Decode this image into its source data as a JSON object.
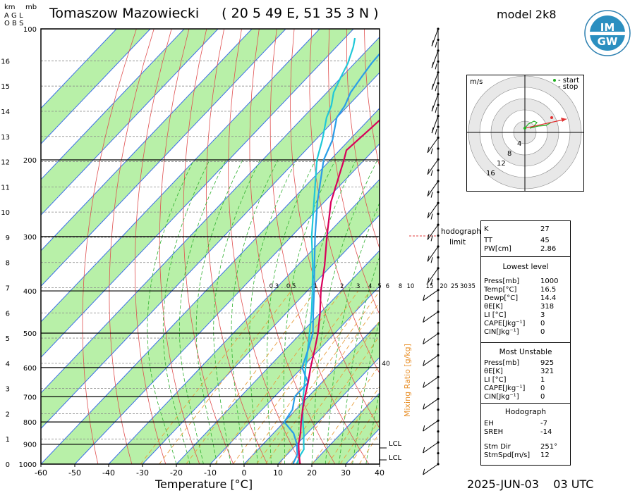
{
  "header": {
    "station": "Tomaszow Mazowiecki",
    "coords": "( 20 5 49 E, 51 35 3 N )",
    "model": "model 2k8",
    "datetime": "2025-JUN-03    03 UTC",
    "km_label": "km",
    "agl_label": "A G L",
    "obs_label": "O B S",
    "mb_label": "mb",
    "logo_text": "IMGW"
  },
  "chart_data": {
    "type": "skew-t",
    "xlabel": "Temperature [°C]",
    "x_ticks": [
      -60,
      -50,
      -40,
      -30,
      -20,
      -10,
      0,
      10,
      20,
      30,
      40
    ],
    "pressure_ticks": [
      100,
      200,
      300,
      400,
      500,
      600,
      700,
      800,
      900,
      1000
    ],
    "km_ticks": [
      0,
      1,
      2,
      3,
      4,
      5,
      6,
      7,
      8,
      9,
      10,
      11,
      12,
      13,
      14,
      15,
      16
    ],
    "mixing_ratio_label": "Mixing Ratio [g/kg]",
    "mixing_ratio_ticks": [
      "0.3",
      "0.5",
      "1",
      "2",
      "3",
      "4",
      "5",
      "6",
      "8",
      "10",
      "15",
      "20",
      "25",
      "30",
      "35"
    ],
    "mixing_ratio_extra": "40",
    "lcl_label": "LCL",
    "hodograph_limit_label": "hodograph limit",
    "temperature_profile": [
      [
        1000,
        16.5
      ],
      [
        950,
        13.5
      ],
      [
        925,
        12
      ],
      [
        900,
        10.5
      ],
      [
        850,
        8
      ],
      [
        800,
        5
      ],
      [
        750,
        2
      ],
      [
        700,
        -1
      ],
      [
        650,
        -4
      ],
      [
        600,
        -7.5
      ],
      [
        550,
        -11
      ],
      [
        500,
        -15
      ],
      [
        450,
        -20
      ],
      [
        400,
        -26
      ],
      [
        350,
        -32
      ],
      [
        300,
        -39.5
      ],
      [
        250,
        -48
      ],
      [
        200,
        -56
      ],
      [
        190,
        -58
      ],
      [
        170,
        -57
      ],
      [
        150,
        -56
      ],
      [
        130,
        -56
      ],
      [
        120,
        -57
      ],
      [
        110,
        -58
      ],
      [
        100,
        -59
      ]
    ],
    "dewpoint_profile": [
      [
        1000,
        14.4
      ],
      [
        950,
        13
      ],
      [
        925,
        11.5
      ],
      [
        900,
        10
      ],
      [
        850,
        6
      ],
      [
        800,
        0
      ],
      [
        750,
        -1
      ],
      [
        700,
        -4
      ],
      [
        650,
        -4
      ],
      [
        600,
        -10
      ],
      [
        550,
        -13
      ],
      [
        500,
        -16.5
      ],
      [
        450,
        -22
      ],
      [
        400,
        -28
      ],
      [
        350,
        -35
      ],
      [
        300,
        -43
      ],
      [
        250,
        -52
      ],
      [
        200,
        -62
      ],
      [
        180,
        -65
      ],
      [
        160,
        -70
      ],
      [
        150,
        -71
      ],
      [
        140,
        -73
      ],
      [
        130,
        -74
      ],
      [
        120,
        -75
      ],
      [
        100,
        -76
      ]
    ],
    "parcel_profile": [
      [
        1000,
        15.5
      ],
      [
        950,
        14
      ],
      [
        925,
        13.5
      ],
      [
        900,
        12
      ],
      [
        850,
        9
      ],
      [
        800,
        5.5
      ],
      [
        750,
        2
      ],
      [
        700,
        -1.5
      ],
      [
        650,
        -5
      ],
      [
        600,
        -9
      ],
      [
        550,
        -13
      ],
      [
        500,
        -17.5
      ],
      [
        450,
        -22.5
      ],
      [
        400,
        -28.5
      ],
      [
        350,
        -35.5
      ],
      [
        300,
        -44
      ],
      [
        250,
        -53
      ],
      [
        200,
        -64
      ],
      [
        180,
        -68
      ],
      [
        160,
        -73
      ],
      [
        150,
        -75
      ],
      [
        140,
        -78
      ],
      [
        130,
        -80
      ],
      [
        120,
        -82
      ],
      [
        110,
        -85
      ],
      [
        105,
        -87
      ]
    ]
  },
  "hodograph": {
    "unit": "m/s",
    "start_label": "- start",
    "stop_label": "- stop",
    "ring_labels": [
      "4",
      "8",
      "12",
      "16"
    ]
  },
  "indices": {
    "k_label": "K",
    "k": "27",
    "tt_label": "TT",
    "tt": "45",
    "pw_label": "PW[cm]",
    "pw": "2.86",
    "lowest_title": "Lowest level",
    "lowest": [
      {
        "label": "Press[mb]",
        "value": "1000"
      },
      {
        "label": "Temp[°C]",
        "value": "16.5"
      },
      {
        "label": "Dewp[°C]",
        "value": "14.4"
      },
      {
        "label": "θE[K]",
        "value": "318"
      },
      {
        "label": "LI [°C]",
        "value": "3"
      },
      {
        "label": "CAPE[Jkg⁻¹]",
        "value": "0"
      },
      {
        "label": "CIN[Jkg⁻¹]",
        "value": "0"
      }
    ],
    "mu_title": "Most Unstable",
    "mu": [
      {
        "label": "Press[mb]",
        "value": "925"
      },
      {
        "label": "θE[K]",
        "value": "321"
      },
      {
        "label": "LI [°C]",
        "value": "1"
      },
      {
        "label": "CAPE[Jkg⁻¹]",
        "value": "0"
      },
      {
        "label": "CIN[Jkg⁻¹]",
        "value": "0"
      }
    ],
    "hodo_title": "Hodograph",
    "hodo": [
      {
        "label": "EH",
        "value": "-7"
      },
      {
        "label": "SREH",
        "value": "-14"
      }
    ],
    "storm": [
      {
        "label": "Stm Dir",
        "value": "251°"
      },
      {
        "label": "StmSpd[m/s]",
        "value": "12"
      }
    ]
  },
  "colors": {
    "temperature": "#d8005a",
    "dewpoint": "#2a9ee8",
    "parcel": "#20c8d8",
    "green_band": "#b8f0a8",
    "isotherm": "#3a6ee8",
    "dry_adiabat": "#e05050",
    "moist_adiabat": "#30b030",
    "mixing_ratio": "#e8a040"
  }
}
